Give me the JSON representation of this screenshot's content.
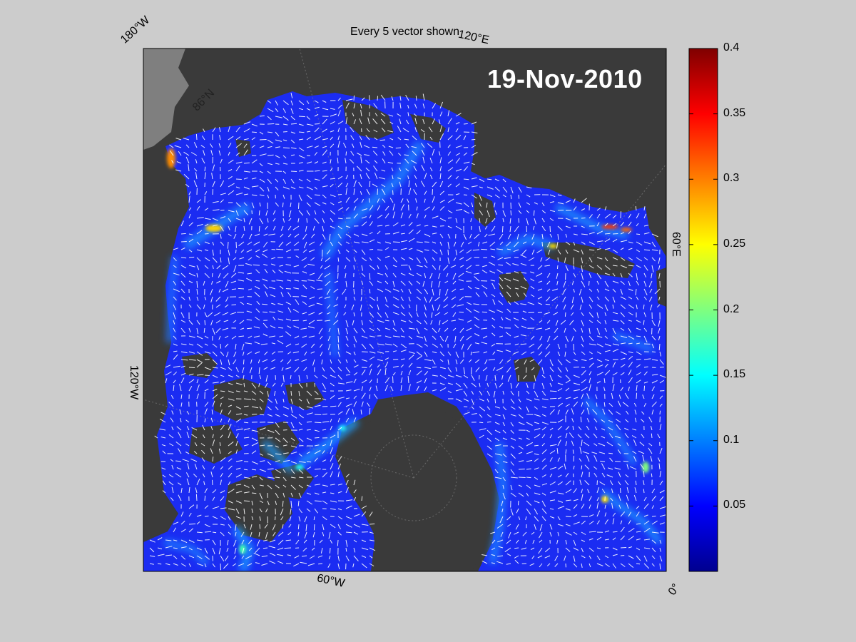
{
  "figure": {
    "title": "Every 5 vector shown",
    "date": "19-Nov-2010",
    "colors": {
      "background": "#cccccc",
      "land": "#3a3a3a",
      "land_outside": "#7f7f7f",
      "ocean_base": "#1b2cf2",
      "vectors": "#ffffff"
    }
  },
  "map": {
    "projection": "polar stereographic (North Pole)",
    "labels": {
      "lon_180w": "180°W",
      "lon_120e": "120°E",
      "lat_86n": "86°N",
      "lon_60e": "60°E",
      "lon_120w": "120°W",
      "lon_60w": "60°W",
      "lon_0": "0°"
    }
  },
  "colorbar": {
    "colormap": "jet",
    "range": [
      0,
      0.4
    ],
    "ticks": [
      "0.4",
      "0.35",
      "0.3",
      "0.25",
      "0.2",
      "0.15",
      "0.1",
      "0.05"
    ]
  }
}
